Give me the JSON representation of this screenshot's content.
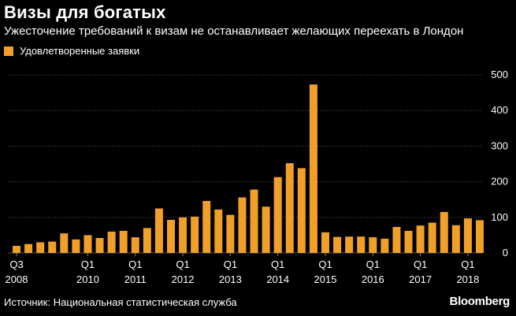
{
  "header": {
    "title": "Визы для богатых",
    "subtitle": "Ужесточение требований к визам не останавливает желающих переехать в Лондон"
  },
  "legend": {
    "label": "Удовлетворенные заявки"
  },
  "footer": {
    "source": "Источник: Национальная статистическая служба",
    "brand": "Bloomberg"
  },
  "colors": {
    "bar": "#f0a028",
    "background": "#000000",
    "grid": "#555555"
  },
  "chart_data": {
    "type": "bar",
    "title": "Визы для богатых",
    "subtitle": "Ужесточение требований к визам не останавливает желающих переехать в Лондон",
    "xlabel": "",
    "ylabel": "",
    "ylim": [
      0,
      500
    ],
    "yticks": [
      0,
      100,
      200,
      300,
      400,
      500
    ],
    "grid": "horizontal dotted",
    "legend_position": "top-left",
    "categories": [
      "2008 Q3",
      "2008 Q4",
      "2009 Q1",
      "2009 Q2",
      "2009 Q3",
      "2009 Q4",
      "2010 Q1",
      "2010 Q2",
      "2010 Q3",
      "2010 Q4",
      "2011 Q1",
      "2011 Q2",
      "2011 Q3",
      "2011 Q4",
      "2012 Q1",
      "2012 Q2",
      "2012 Q3",
      "2012 Q4",
      "2013 Q1",
      "2013 Q2",
      "2013 Q3",
      "2013 Q4",
      "2014 Q1",
      "2014 Q2",
      "2014 Q3",
      "2014 Q4",
      "2015 Q1",
      "2015 Q2",
      "2015 Q3",
      "2015 Q4",
      "2016 Q1",
      "2016 Q2",
      "2016 Q3",
      "2016 Q4",
      "2017 Q1",
      "2017 Q2",
      "2017 Q3",
      "2017 Q4",
      "2018 Q1",
      "2018 Q2"
    ],
    "series": [
      {
        "name": "Удовлетворенные заявки",
        "values": [
          20,
          25,
          30,
          32,
          55,
          38,
          50,
          42,
          60,
          62,
          44,
          70,
          125,
          93,
          100,
          102,
          146,
          122,
          107,
          156,
          178,
          130,
          213,
          252,
          238,
          473,
          58,
          45,
          46,
          46,
          44,
          40,
          73,
          62,
          77,
          85,
          115,
          78,
          97,
          92
        ]
      }
    ],
    "x_tick_labels": [
      {
        "index": 0,
        "top": "Q3",
        "bottom": "2008"
      },
      {
        "index": 6,
        "top": "Q1",
        "bottom": "2010"
      },
      {
        "index": 10,
        "top": "Q1",
        "bottom": "2011"
      },
      {
        "index": 14,
        "top": "Q1",
        "bottom": "2012"
      },
      {
        "index": 18,
        "top": "Q1",
        "bottom": "2013"
      },
      {
        "index": 22,
        "top": "Q1",
        "bottom": "2014"
      },
      {
        "index": 26,
        "top": "Q1",
        "bottom": "2015"
      },
      {
        "index": 30,
        "top": "Q1",
        "bottom": "2016"
      },
      {
        "index": 34,
        "top": "Q1",
        "bottom": "2017"
      },
      {
        "index": 38,
        "top": "Q1",
        "bottom": "2018"
      }
    ]
  }
}
